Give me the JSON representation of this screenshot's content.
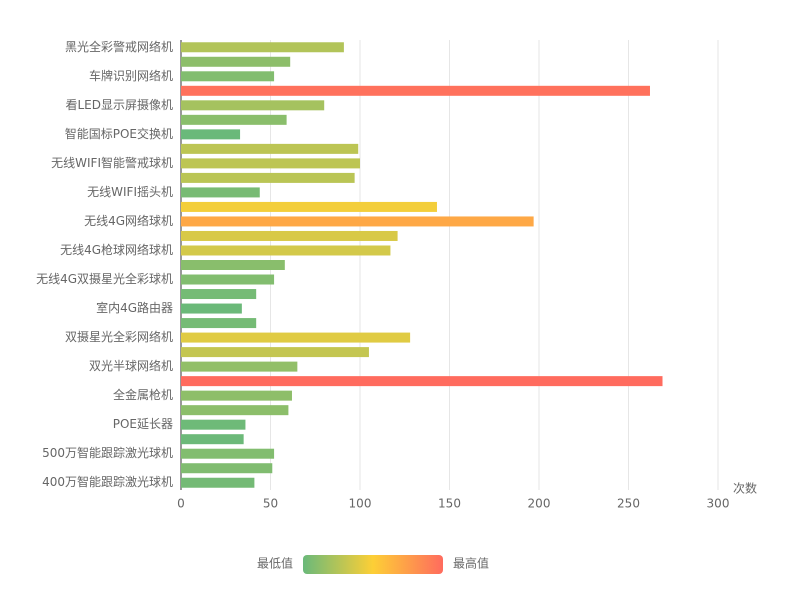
{
  "chart_data": {
    "type": "hbar",
    "categories": [
      "黑光全彩警戒网络机",
      null,
      "车牌识别网络机",
      null,
      "看LED显示屏摄像机",
      null,
      "智能国标POE交换机",
      null,
      "无线WIFI智能警戒球机",
      null,
      "无线WIFI摇头机",
      null,
      "无线4G网络球机",
      null,
      "无线4G枪球网络球机",
      null,
      "无线4G双摄星光全彩球机",
      null,
      "室内4G路由器",
      null,
      "双摄星光全彩网络机",
      null,
      "双光半球网络机",
      null,
      "全金属枪机",
      null,
      "POE延长器",
      null,
      "500万智能跟踪激光球机",
      null,
      "400万智能跟踪激光球机"
    ],
    "values": [
      91,
      61,
      52,
      262,
      80,
      59,
      33,
      99,
      100,
      97,
      44,
      143,
      197,
      121,
      117,
      58,
      52,
      42,
      34,
      42,
      128,
      105,
      65,
      269,
      62,
      60,
      36,
      35,
      52,
      51,
      41
    ],
    "x_label": "次数",
    "xlim": [
      0,
      300
    ],
    "xticks": [
      0,
      50,
      100,
      150,
      200,
      250,
      300
    ],
    "grid": true,
    "visual_map": {
      "min_label": "最低值",
      "max_label": "最高值",
      "colors": [
        "#6ab97a",
        "#fdcf36",
        "#ff6b5e"
      ]
    }
  }
}
